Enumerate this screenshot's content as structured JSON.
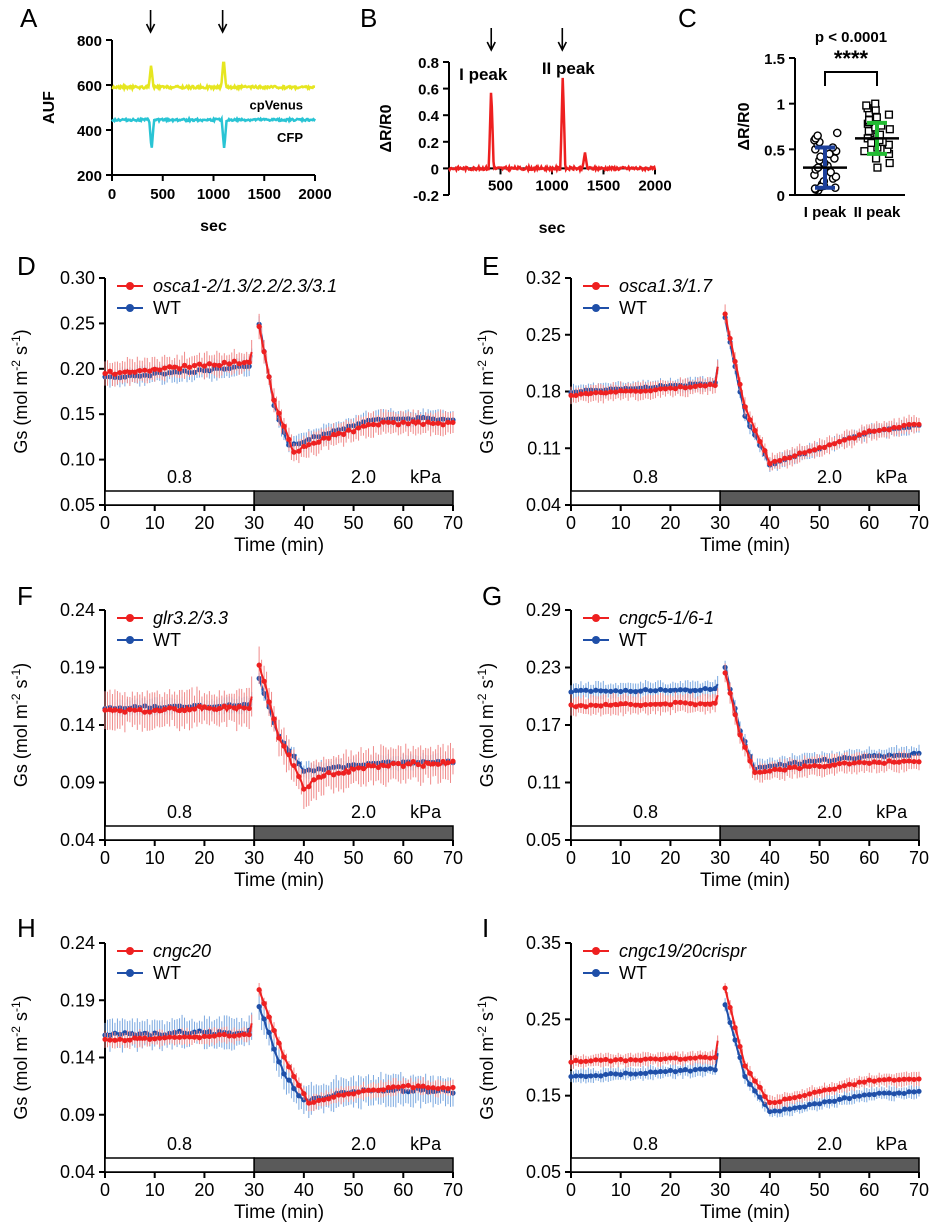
{
  "colors": {
    "yellow": "#e6e620",
    "cyan": "#29c4d4",
    "red": "#ee2020",
    "redLight": "#f08a8a",
    "blue": "#1f4fa8",
    "blueLight": "#7aa8e0",
    "green": "#22bb33",
    "navy": "#1c3f9a",
    "barFill": "#5a5a5a"
  },
  "chart_data": [
    {
      "id": "A",
      "panel_label": "A",
      "type": "line",
      "xlabel": "sec",
      "ylabel": "AUF",
      "xlim": [
        0,
        2000
      ],
      "ylim": [
        200,
        800
      ],
      "xticks": [
        0,
        500,
        1000,
        1500,
        2000
      ],
      "yticks": [
        200,
        400,
        600,
        800
      ],
      "arrows_x": [
        380,
        1090
      ],
      "series": [
        {
          "name": "cpVenus",
          "color_key": "yellow",
          "baseline": 590,
          "noise": 6,
          "spikes": [
            [
              385,
              690
            ],
            [
              1100,
              720
            ]
          ]
        },
        {
          "name": "CFP",
          "color_key": "cyan",
          "baseline": 445,
          "noise": 5,
          "spikes": [
            [
              390,
              310
            ],
            [
              1105,
              315
            ]
          ]
        }
      ]
    },
    {
      "id": "B",
      "panel_label": "B",
      "type": "line",
      "xlabel": "sec",
      "ylabel": "ΔR/R0",
      "xlim": [
        0,
        2000
      ],
      "ylim": [
        -0.2,
        0.8
      ],
      "xticks": [
        500,
        1000,
        1500,
        2000
      ],
      "yticks": [
        -0.2,
        0.0,
        0.2,
        0.4,
        0.6,
        0.8
      ],
      "arrows_x": [
        410,
        1100
      ],
      "annotations": [
        "I peak",
        "II peak"
      ],
      "series": [
        {
          "name": "",
          "color_key": "red",
          "baseline": 0.0,
          "noise": 0.012,
          "spikes": [
            [
              410,
              0.62
            ],
            [
              1105,
              0.71
            ],
            [
              1320,
              0.12
            ]
          ]
        }
      ]
    },
    {
      "id": "C",
      "panel_label": "C",
      "type": "scatter",
      "ylabel": "ΔR/R0",
      "ylim": [
        0,
        1.5
      ],
      "yticks": [
        0.0,
        0.5,
        1.0,
        1.5
      ],
      "categories": [
        "I peak",
        "II peak"
      ],
      "means": [
        0.3,
        0.62
      ],
      "sd": [
        0.22,
        0.17
      ],
      "pvalue_text": "p < 0.0001",
      "significance": "****",
      "points": [
        [
          0.05,
          0.06,
          0.08,
          0.1,
          0.12,
          0.15,
          0.18,
          0.2,
          0.22,
          0.25,
          0.28,
          0.3,
          0.32,
          0.35,
          0.38,
          0.4,
          0.42,
          0.45,
          0.48,
          0.5,
          0.52,
          0.55,
          0.58,
          0.6,
          0.62,
          0.65,
          0.68,
          0.07,
          0.09
        ],
        [
          0.3,
          0.35,
          0.4,
          0.45,
          0.48,
          0.5,
          0.52,
          0.55,
          0.58,
          0.6,
          0.62,
          0.64,
          0.66,
          0.68,
          0.7,
          0.72,
          0.74,
          0.76,
          0.78,
          0.8,
          0.82,
          0.85,
          0.88,
          0.9,
          0.93,
          0.95,
          0.98,
          1.0,
          0.62,
          0.57
        ]
      ]
    },
    {
      "id": "D",
      "panel_label": "D",
      "type": "line",
      "xlabel": "Time (min)",
      "ylabel": "Gs (mol m-2 s-1)",
      "xlim": [
        0,
        70
      ],
      "ylim": [
        0.05,
        0.3
      ],
      "xticks": [
        0,
        10,
        20,
        30,
        40,
        50,
        60,
        70
      ],
      "yticks": [
        0.05,
        0.1,
        0.15,
        0.2,
        0.25,
        0.3
      ],
      "ytick_labels": [
        "0.05",
        "0.10",
        "0.15",
        "0.20",
        "0.25",
        "0.30"
      ],
      "bar_labels": [
        "0.8",
        "2.0",
        "kPa"
      ],
      "series": [
        {
          "name": "osca1-2/1.3/2.2/2.3/3.1",
          "color_key": "red",
          "light_key": "redLight",
          "italic": true,
          "pts": [
            [
              0,
              0.195
            ],
            [
              29,
              0.208
            ],
            [
              31,
              0.245
            ],
            [
              34,
              0.165
            ],
            [
              38,
              0.108
            ],
            [
              45,
              0.125
            ],
            [
              55,
              0.14
            ],
            [
              70,
              0.14
            ]
          ],
          "err": 0.015
        },
        {
          "name": "WT",
          "color_key": "blue",
          "light_key": "blueLight",
          "italic": false,
          "pts": [
            [
              0,
              0.19
            ],
            [
              29,
              0.202
            ],
            [
              31,
              0.25
            ],
            [
              34,
              0.16
            ],
            [
              37,
              0.115
            ],
            [
              45,
              0.13
            ],
            [
              55,
              0.145
            ],
            [
              70,
              0.145
            ]
          ],
          "err": 0.012
        }
      ]
    },
    {
      "id": "E",
      "panel_label": "E",
      "type": "line",
      "xlabel": "Time (min)",
      "ylabel": "Gs (mol m-2 s-1)",
      "xlim": [
        0,
        70
      ],
      "ylim": [
        0.04,
        0.32
      ],
      "xticks": [
        0,
        10,
        20,
        30,
        40,
        50,
        60,
        70
      ],
      "yticks": [
        0.04,
        0.11,
        0.18,
        0.25,
        0.32
      ],
      "ytick_labels": [
        "0.04",
        "0.11",
        "0.18",
        "0.25",
        "0.32"
      ],
      "bar_labels": [
        "0.8",
        "2.0",
        "kPa"
      ],
      "series": [
        {
          "name": "osca1.3/1.7",
          "color_key": "red",
          "light_key": "redLight",
          "italic": true,
          "pts": [
            [
              0,
              0.175
            ],
            [
              29,
              0.188
            ],
            [
              31,
              0.275
            ],
            [
              35,
              0.16
            ],
            [
              40,
              0.092
            ],
            [
              50,
              0.11
            ],
            [
              60,
              0.13
            ],
            [
              70,
              0.14
            ]
          ],
          "err": 0.012
        },
        {
          "name": "WT",
          "color_key": "blue",
          "light_key": "blueLight",
          "italic": false,
          "pts": [
            [
              0,
              0.18
            ],
            [
              29,
              0.19
            ],
            [
              31,
              0.27
            ],
            [
              35,
              0.15
            ],
            [
              40,
              0.09
            ],
            [
              50,
              0.11
            ],
            [
              60,
              0.13
            ],
            [
              70,
              0.138
            ]
          ],
          "err": 0.01
        }
      ]
    },
    {
      "id": "F",
      "panel_label": "F",
      "type": "line",
      "xlabel": "Time (min)",
      "ylabel": "Gs (mol m-2 s-1)",
      "xlim": [
        0,
        70
      ],
      "ylim": [
        0.04,
        0.24
      ],
      "xticks": [
        0,
        10,
        20,
        30,
        40,
        50,
        60,
        70
      ],
      "yticks": [
        0.04,
        0.09,
        0.14,
        0.19,
        0.24
      ],
      "ytick_labels": [
        "0.04",
        "0.09",
        "0.14",
        "0.19",
        "0.24"
      ],
      "bar_labels": [
        "0.8",
        "2.0",
        "kPa"
      ],
      "series": [
        {
          "name": "glr3.2/3.3",
          "color_key": "red",
          "light_key": "redLight",
          "italic": true,
          "pts": [
            [
              0,
              0.152
            ],
            [
              29,
              0.155
            ],
            [
              31,
              0.192
            ],
            [
              35,
              0.13
            ],
            [
              40,
              0.085
            ],
            [
              45,
              0.098
            ],
            [
              55,
              0.105
            ],
            [
              70,
              0.107
            ]
          ],
          "err": 0.018
        },
        {
          "name": "WT",
          "color_key": "blue",
          "light_key": "blueLight",
          "italic": false,
          "pts": [
            [
              0,
              0.155
            ],
            [
              29,
              0.157
            ],
            [
              31,
              0.18
            ],
            [
              35,
              0.13
            ],
            [
              40,
              0.1
            ],
            [
              45,
              0.102
            ],
            [
              55,
              0.107
            ],
            [
              70,
              0.108
            ]
          ],
          "err": 0.008
        }
      ]
    },
    {
      "id": "G",
      "panel_label": "G",
      "type": "line",
      "xlabel": "Time (min)",
      "ylabel": "Gs (mol m-2 s-1)",
      "xlim": [
        0,
        70
      ],
      "ylim": [
        0.05,
        0.29
      ],
      "xticks": [
        0,
        10,
        20,
        30,
        40,
        50,
        60,
        70
      ],
      "yticks": [
        0.05,
        0.11,
        0.17,
        0.23,
        0.29
      ],
      "ytick_labels": [
        "0.05",
        "0.11",
        "0.17",
        "0.23",
        "0.29"
      ],
      "bar_labels": [
        "0.8",
        "2.0",
        "kPa"
      ],
      "series": [
        {
          "name": "cngc5-1/6-1",
          "color_key": "red",
          "light_key": "redLight",
          "italic": true,
          "pts": [
            [
              0,
              0.19
            ],
            [
              29,
              0.193
            ],
            [
              31,
              0.225
            ],
            [
              34,
              0.16
            ],
            [
              37,
              0.12
            ],
            [
              45,
              0.125
            ],
            [
              55,
              0.13
            ],
            [
              70,
              0.132
            ]
          ],
          "err": 0.012
        },
        {
          "name": "WT",
          "color_key": "blue",
          "light_key": "blueLight",
          "italic": false,
          "pts": [
            [
              0,
              0.205
            ],
            [
              29,
              0.207
            ],
            [
              31,
              0.23
            ],
            [
              34,
              0.165
            ],
            [
              37,
              0.125
            ],
            [
              45,
              0.13
            ],
            [
              55,
              0.135
            ],
            [
              70,
              0.14
            ]
          ],
          "err": 0.01
        }
      ]
    },
    {
      "id": "H",
      "panel_label": "H",
      "type": "line",
      "xlabel": "Time (min)",
      "ylabel": "Gs (mol m-2 s-1)",
      "xlim": [
        0,
        70
      ],
      "ylim": [
        0.04,
        0.24
      ],
      "xticks": [
        0,
        10,
        20,
        30,
        40,
        50,
        60,
        70
      ],
      "yticks": [
        0.04,
        0.09,
        0.14,
        0.19,
        0.24
      ],
      "ytick_labels": [
        "0.04",
        "0.09",
        "0.14",
        "0.19",
        "0.24"
      ],
      "bar_labels": [
        "0.8",
        "2.0",
        "kPa"
      ],
      "series": [
        {
          "name": "cngc20",
          "color_key": "red",
          "light_key": "redLight",
          "italic": true,
          "pts": [
            [
              0,
              0.155
            ],
            [
              29,
              0.16
            ],
            [
              31,
              0.2
            ],
            [
              36,
              0.14
            ],
            [
              41,
              0.1
            ],
            [
              48,
              0.108
            ],
            [
              60,
              0.115
            ],
            [
              70,
              0.113
            ]
          ],
          "err": 0.008
        },
        {
          "name": "WT",
          "color_key": "blue",
          "light_key": "blueLight",
          "italic": false,
          "pts": [
            [
              0,
              0.16
            ],
            [
              29,
              0.162
            ],
            [
              31,
              0.185
            ],
            [
              36,
              0.125
            ],
            [
              40,
              0.102
            ],
            [
              48,
              0.11
            ],
            [
              60,
              0.112
            ],
            [
              70,
              0.11
            ]
          ],
          "err": 0.015
        }
      ]
    },
    {
      "id": "I",
      "panel_label": "I",
      "type": "line",
      "xlabel": "Time (min)",
      "ylabel": "Gs (mol m-2 s-1)",
      "xlim": [
        0,
        70
      ],
      "ylim": [
        0.05,
        0.35
      ],
      "xticks": [
        0,
        10,
        20,
        30,
        40,
        50,
        60,
        70
      ],
      "yticks": [
        0.05,
        0.15,
        0.25,
        0.35
      ],
      "ytick_labels": [
        "0.05",
        "0.15",
        "0.25",
        "0.35"
      ],
      "bar_labels": [
        "0.8",
        "2.0",
        "kPa"
      ],
      "series": [
        {
          "name": "cngc19/20crispr",
          "color_key": "red",
          "light_key": "redLight",
          "italic": true,
          "pts": [
            [
              0,
              0.195
            ],
            [
              29,
              0.2
            ],
            [
              31,
              0.29
            ],
            [
              35,
              0.19
            ],
            [
              40,
              0.14
            ],
            [
              50,
              0.155
            ],
            [
              60,
              0.17
            ],
            [
              70,
              0.172
            ]
          ],
          "err": 0.01
        },
        {
          "name": "WT",
          "color_key": "blue",
          "light_key": "blueLight",
          "italic": false,
          "pts": [
            [
              0,
              0.175
            ],
            [
              29,
              0.185
            ],
            [
              31,
              0.27
            ],
            [
              35,
              0.175
            ],
            [
              40,
              0.128
            ],
            [
              50,
              0.14
            ],
            [
              60,
              0.152
            ],
            [
              70,
              0.155
            ]
          ],
          "err": 0.01
        }
      ]
    }
  ]
}
